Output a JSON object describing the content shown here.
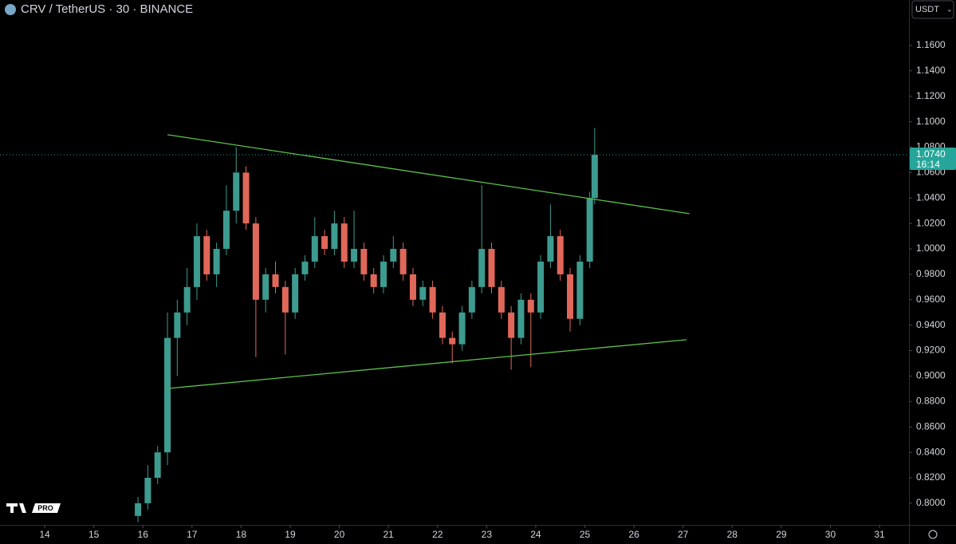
{
  "header": {
    "title": "CRV / TetherUS · 30 · BINANCE",
    "currency": "USDT",
    "logo": "PRO"
  },
  "chart_data": {
    "type": "candlestick",
    "x": [
      15.9,
      16.1,
      16.3,
      16.5,
      16.7,
      16.9,
      17.1,
      17.3,
      17.5,
      17.7,
      17.9,
      18.1,
      18.3,
      18.5,
      18.7,
      18.9,
      19.1,
      19.3,
      19.5,
      19.7,
      19.9,
      20.1,
      20.3,
      20.5,
      20.7,
      20.9,
      21.1,
      21.3,
      21.5,
      21.7,
      21.9,
      22.1,
      22.3,
      22.5,
      22.7,
      22.9,
      23.1,
      23.3,
      23.5,
      23.7,
      23.9,
      24.1,
      24.3,
      24.5,
      24.7,
      24.9,
      25.1,
      25.2
    ],
    "open": [
      0.79,
      0.8,
      0.82,
      0.84,
      0.93,
      0.95,
      0.97,
      1.01,
      0.98,
      1.0,
      1.03,
      1.06,
      1.02,
      0.96,
      0.98,
      0.97,
      0.95,
      0.98,
      0.99,
      1.01,
      1.0,
      1.02,
      0.99,
      1.0,
      0.98,
      0.97,
      0.99,
      1.0,
      0.98,
      0.96,
      0.97,
      0.95,
      0.93,
      0.925,
      0.95,
      0.97,
      1.0,
      0.97,
      0.95,
      0.93,
      0.96,
      0.95,
      0.99,
      1.01,
      0.98,
      0.945,
      0.99,
      1.04
    ],
    "high": [
      0.805,
      0.83,
      0.845,
      0.95,
      0.96,
      0.985,
      1.02,
      1.015,
      1.005,
      1.05,
      1.08,
      1.065,
      1.025,
      0.985,
      0.99,
      0.975,
      0.985,
      0.995,
      1.025,
      1.015,
      1.03,
      1.025,
      1.03,
      1.005,
      0.985,
      0.995,
      1.01,
      1.005,
      0.985,
      0.975,
      0.975,
      0.955,
      0.935,
      0.955,
      0.975,
      1.05,
      1.005,
      0.975,
      0.955,
      0.965,
      0.965,
      0.995,
      1.035,
      1.015,
      0.985,
      0.995,
      1.045,
      1.095
    ],
    "low": [
      0.785,
      0.795,
      0.815,
      0.83,
      0.9,
      0.94,
      0.96,
      0.975,
      0.97,
      0.995,
      1.02,
      1.015,
      0.915,
      0.95,
      0.965,
      0.917,
      0.945,
      0.975,
      0.985,
      0.995,
      0.995,
      0.985,
      0.985,
      0.975,
      0.965,
      0.965,
      0.985,
      0.975,
      0.955,
      0.955,
      0.945,
      0.925,
      0.91,
      0.92,
      0.945,
      0.965,
      0.965,
      0.945,
      0.905,
      0.925,
      0.907,
      0.945,
      0.985,
      0.975,
      0.935,
      0.94,
      0.985,
      1.035
    ],
    "close": [
      0.8,
      0.82,
      0.84,
      0.93,
      0.95,
      0.97,
      1.01,
      0.98,
      1.0,
      1.03,
      1.06,
      1.02,
      0.96,
      0.98,
      0.97,
      0.95,
      0.98,
      0.99,
      1.01,
      1.0,
      1.02,
      0.99,
      1.0,
      0.98,
      0.97,
      0.99,
      1.0,
      0.98,
      0.96,
      0.97,
      0.95,
      0.93,
      0.925,
      0.95,
      0.97,
      1.0,
      0.97,
      0.95,
      0.93,
      0.96,
      0.95,
      0.99,
      1.01,
      0.98,
      0.945,
      0.99,
      1.04,
      1.074
    ],
    "up_color": "#3d9b8f",
    "down_color": "#e0685a",
    "xlim": [
      13.09,
      31.6
    ],
    "xticks": [
      14,
      15,
      16,
      17,
      18,
      19,
      20,
      21,
      22,
      23,
      24,
      25,
      26,
      27,
      28,
      29,
      30,
      31
    ],
    "ylim": [
      0.783,
      1.1957
    ],
    "yticks": [
      {
        "value": 0.8,
        "label": "0.8000"
      },
      {
        "value": 0.82,
        "label": "0.8200"
      },
      {
        "value": 0.84,
        "label": "0.8400"
      },
      {
        "value": 0.86,
        "label": "0.8600"
      },
      {
        "value": 0.88,
        "label": "0.8800"
      },
      {
        "value": 0.9,
        "label": "0.9000"
      },
      {
        "value": 0.92,
        "label": "0.9200"
      },
      {
        "value": 0.94,
        "label": "0.9400"
      },
      {
        "value": 0.96,
        "label": "0.9600"
      },
      {
        "value": 0.98,
        "label": "0.9800"
      },
      {
        "value": 1.0,
        "label": "1.0000"
      },
      {
        "value": 1.02,
        "label": "1.0200"
      },
      {
        "value": 1.04,
        "label": "1.0400"
      },
      {
        "value": 1.06,
        "label": "1.0600"
      },
      {
        "value": 1.08,
        "label": "1.0800"
      },
      {
        "value": 1.1,
        "label": "1.1000"
      },
      {
        "value": 1.12,
        "label": "1.1200"
      },
      {
        "value": 1.14,
        "label": "1.1400"
      },
      {
        "value": 1.16,
        "label": "1.1600"
      }
    ],
    "last_price": {
      "value": 1.074,
      "label": "1.0740"
    },
    "countdown": "16:14",
    "last_price_color": "#26a69a",
    "trend_lines": [
      {
        "x": [
          16.5,
          27.13
        ],
        "y": [
          1.0898,
          1.0277
        ],
        "color": "#5cc24a"
      },
      {
        "x": [
          16.55,
          27.07
        ],
        "y": [
          0.8904,
          0.9286
        ],
        "color": "#5cc24a"
      }
    ]
  }
}
